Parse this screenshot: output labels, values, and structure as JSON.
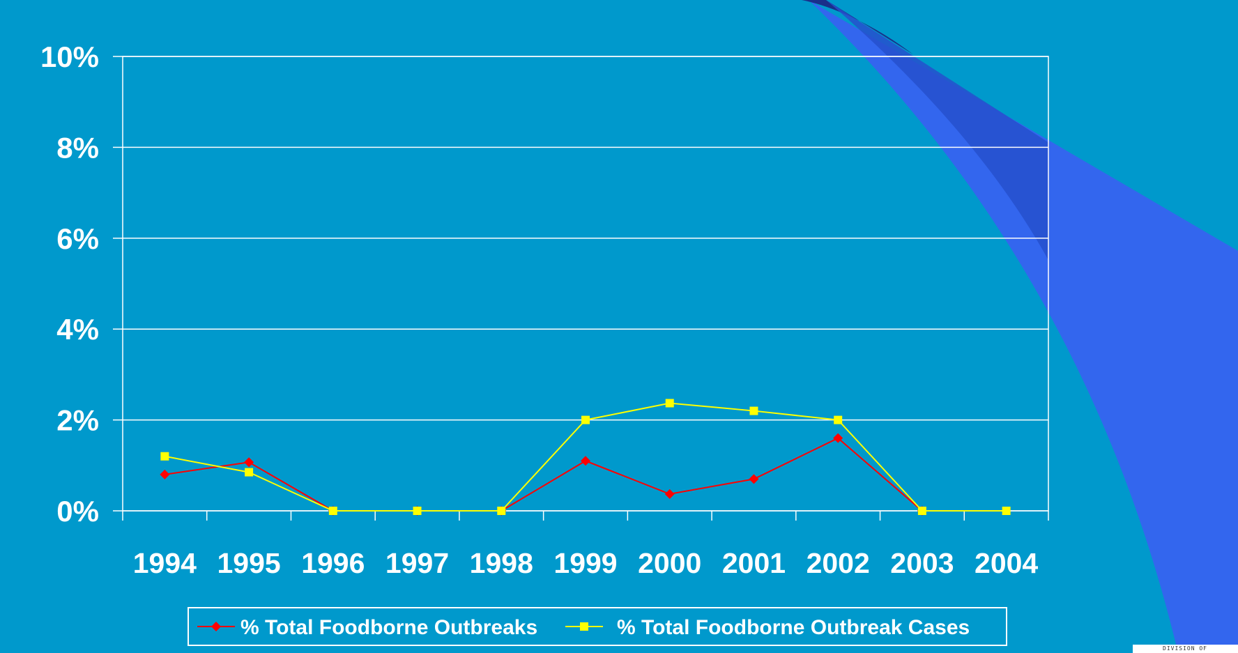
{
  "colors": {
    "background": "#0099CC",
    "grid": "#FFFFFF",
    "decor_dark": "#1A2F8A",
    "decor_bright": "#3366EE"
  },
  "logo": {
    "text": "DIVISION OF"
  },
  "chart_data": {
    "type": "line",
    "title": "",
    "xlabel": "",
    "ylabel": "",
    "categories": [
      "1994",
      "1995",
      "1996",
      "1997",
      "1998",
      "1999",
      "2000",
      "2001",
      "2002",
      "2003",
      "2004"
    ],
    "ylim": [
      0,
      10
    ],
    "y_ticks": [
      "0%",
      "2%",
      "4%",
      "6%",
      "8%",
      "10%"
    ],
    "y_tick_values": [
      0,
      2,
      4,
      6,
      8,
      10
    ],
    "grid": true,
    "legend_position": "bottom",
    "series": [
      {
        "name": "% Total Foodborne Outbreaks",
        "color": "#FF0000",
        "marker": "diamond",
        "values": [
          0.8,
          1.07,
          0,
          0,
          0,
          1.1,
          0.37,
          0.7,
          1.6,
          0,
          null
        ]
      },
      {
        "name": "% Total Foodborne Outbreak Cases",
        "color": "#FFFF00",
        "marker": "square",
        "values": [
          1.2,
          0.85,
          0,
          0,
          0,
          2.0,
          2.37,
          2.2,
          2.0,
          0,
          0
        ]
      }
    ]
  }
}
